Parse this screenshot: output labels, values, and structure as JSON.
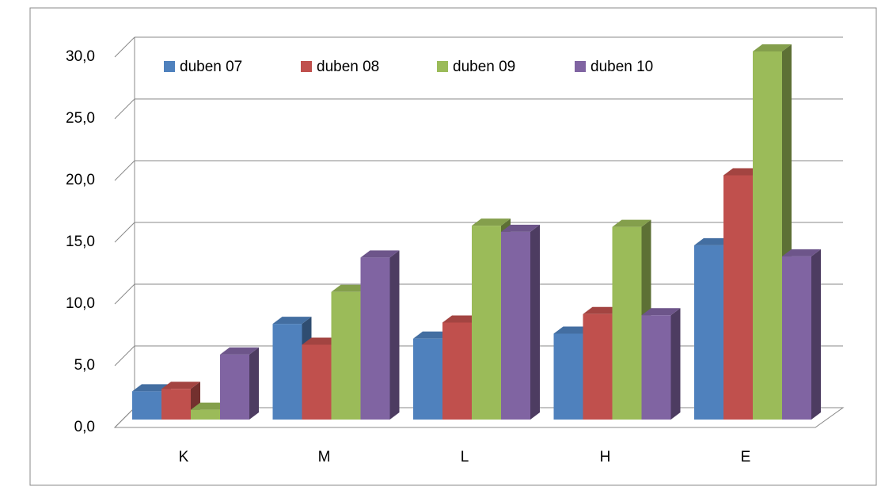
{
  "chart_data": {
    "type": "bar3d",
    "categories": [
      "K",
      "M",
      "L",
      "H",
      "E"
    ],
    "series": [
      {
        "name": "duben 07",
        "color": "#4f81bd",
        "values": [
          2.3,
          7.8,
          6.6,
          7.0,
          14.2
        ]
      },
      {
        "name": "duben 08",
        "color": "#c0504d",
        "values": [
          2.5,
          6.1,
          7.9,
          8.6,
          19.9
        ]
      },
      {
        "name": "duben 09",
        "color": "#9bbb59",
        "values": [
          0.8,
          10.4,
          15.8,
          15.7,
          30.0
        ]
      },
      {
        "name": "duben 10",
        "color": "#8064a2",
        "values": [
          5.3,
          13.2,
          15.3,
          8.5,
          13.3
        ]
      }
    ],
    "ylim": [
      0,
      30
    ],
    "yticks": [
      {
        "value": 0,
        "label": "0,0"
      },
      {
        "value": 5,
        "label": "5,0"
      },
      {
        "value": 10,
        "label": "10,0"
      },
      {
        "value": 15,
        "label": "15,0"
      },
      {
        "value": 20,
        "label": "20,0"
      },
      {
        "value": 25,
        "label": "25,0"
      },
      {
        "value": 30,
        "label": "30,0"
      }
    ],
    "grid": true,
    "legend": "top"
  }
}
